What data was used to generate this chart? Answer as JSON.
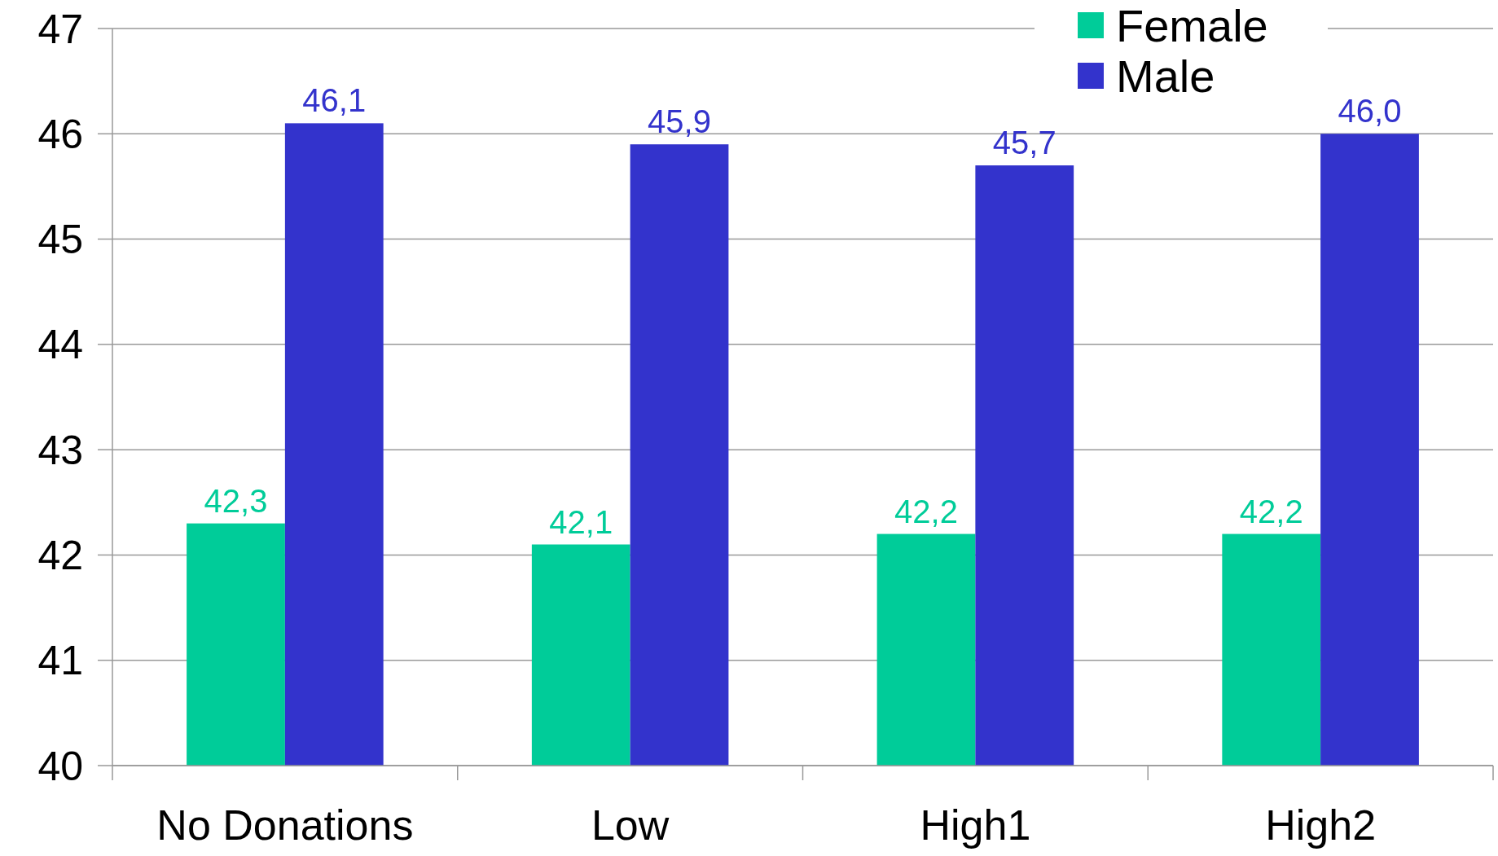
{
  "chart_data": {
    "type": "bar",
    "categories": [
      "No Donations",
      "Low",
      "High1",
      "High2"
    ],
    "series": [
      {
        "name": "Female",
        "color": "#00cc99",
        "values": [
          42.3,
          42.1,
          42.2,
          42.2
        ],
        "value_labels": [
          "42,3",
          "42,1",
          "42,2",
          "42,2"
        ]
      },
      {
        "name": "Male",
        "color": "#3333cc",
        "values": [
          46.1,
          45.9,
          45.7,
          46.0
        ],
        "value_labels": [
          "46,1",
          "45,9",
          "45,7",
          "46,0"
        ]
      }
    ],
    "ylim": [
      40,
      47
    ],
    "yticks": [
      40,
      41,
      42,
      43,
      44,
      45,
      46,
      47
    ],
    "grid": "y",
    "legend": "top right"
  }
}
